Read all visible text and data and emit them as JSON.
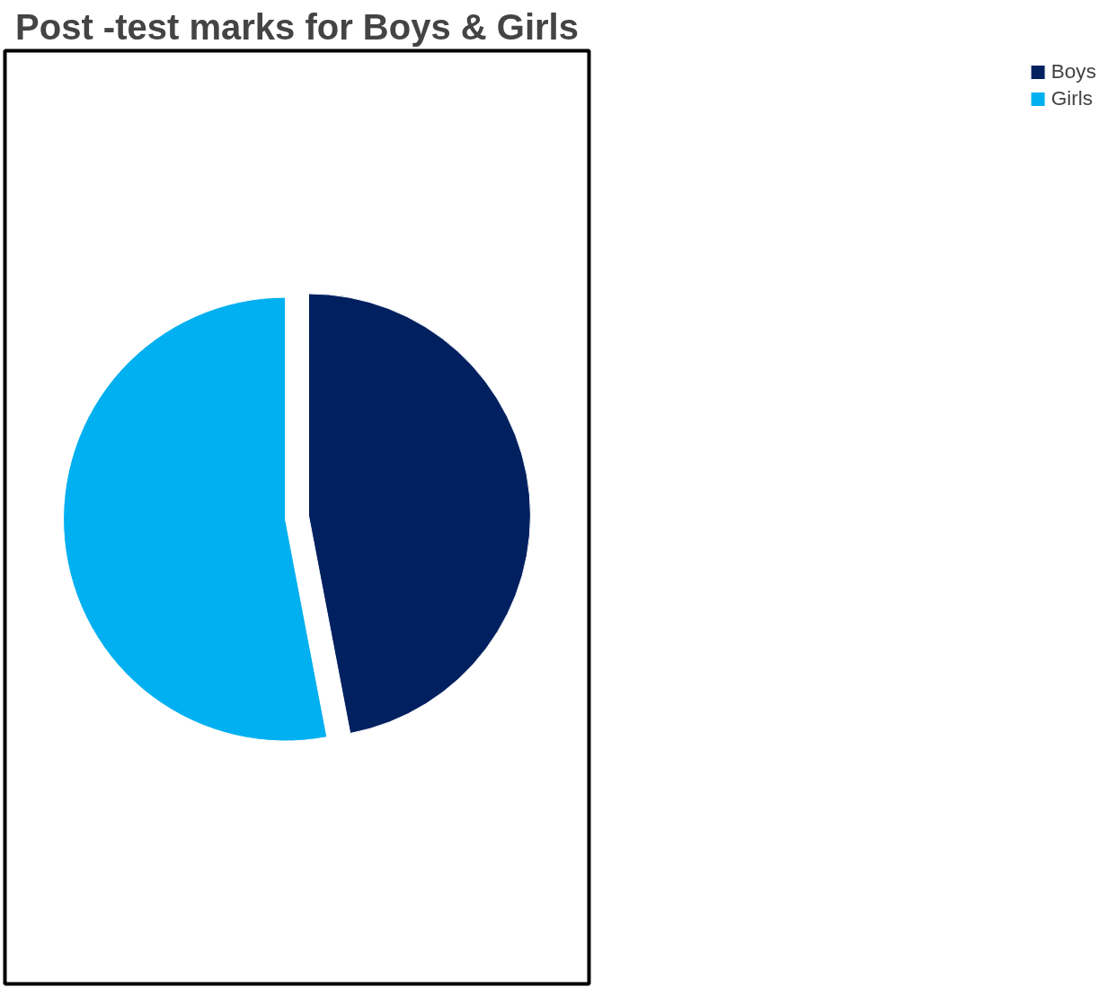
{
  "chart_data": {
    "type": "pie",
    "title": "Post -test marks for Boys & Girls",
    "categories": [
      "Boys",
      "Girls"
    ],
    "values": [
      47,
      53
    ],
    "colors": [
      "#002060",
      "#00b0f0"
    ],
    "legend": "right"
  }
}
